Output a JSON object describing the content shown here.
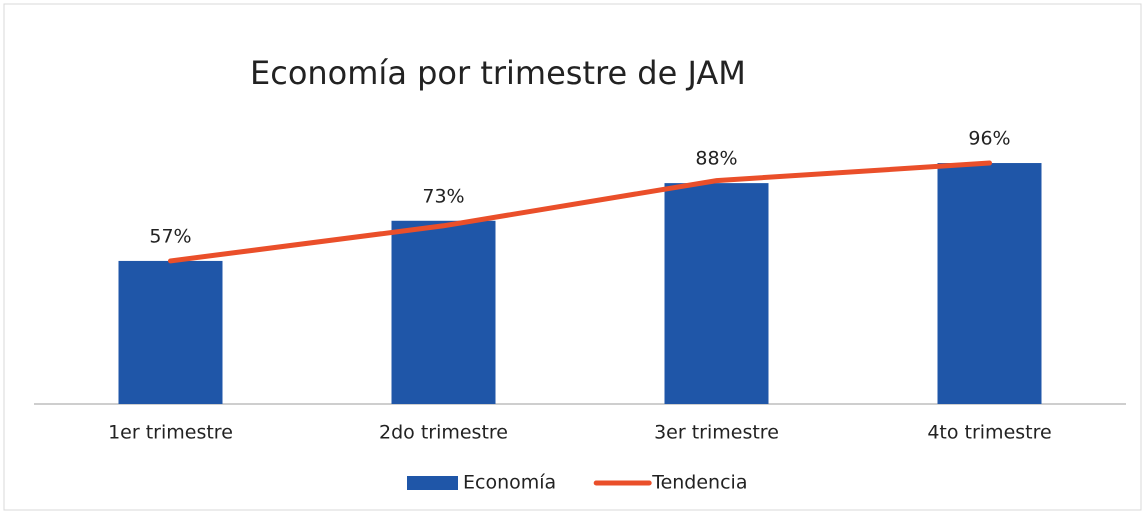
{
  "chart_data": {
    "type": "bar",
    "title": "Economía por trimestre de JAM",
    "categories": [
      "1er trimestre",
      "2do trimestre",
      "3er trimestre",
      "4to trimestre"
    ],
    "series": [
      {
        "name": "Economía",
        "type": "bar",
        "color": "#1f56a8",
        "values": [
          57,
          73,
          88,
          96
        ],
        "value_labels": [
          "57%",
          "73%",
          "88%",
          "96%"
        ]
      },
      {
        "name": "Tendencia",
        "type": "line",
        "color": "#ea4f2a",
        "values": [
          57,
          71,
          89,
          96
        ]
      }
    ],
    "ylim": [
      0,
      100
    ],
    "legend": "bottom"
  }
}
